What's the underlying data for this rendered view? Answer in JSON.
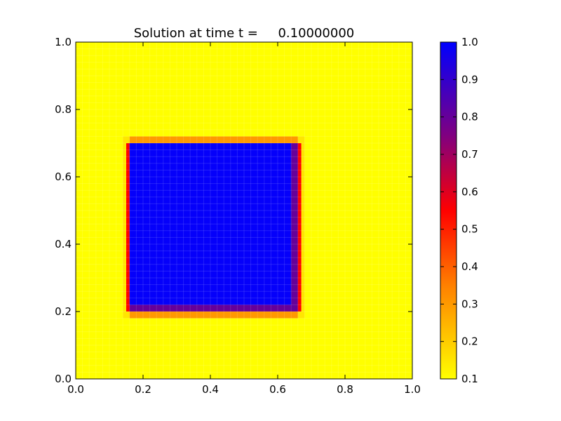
{
  "chart_data": {
    "type": "heatmap",
    "title": "Solution at time t =     0.10000000",
    "xlabel": "",
    "ylabel": "",
    "xlim": [
      0.0,
      1.0
    ],
    "ylim": [
      0.0,
      1.0
    ],
    "x_ticks": [
      "0.0",
      "0.2",
      "0.4",
      "0.6",
      "0.8",
      "1.0"
    ],
    "y_ticks": [
      "0.0",
      "0.2",
      "0.4",
      "0.6",
      "0.8",
      "1.0"
    ],
    "grid_resolution": [
      50,
      50
    ],
    "background_value": 0.1,
    "regions": [
      {
        "x": [
          0.14,
          0.68
        ],
        "y": [
          0.18,
          0.72
        ],
        "value": 0.15
      },
      {
        "x": [
          0.16,
          0.66
        ],
        "y": [
          0.18,
          0.72
        ],
        "value": 0.3
      },
      {
        "x": [
          0.14,
          0.68
        ],
        "y": [
          0.2,
          0.7
        ],
        "value": 0.15
      },
      {
        "x": [
          0.15,
          0.67
        ],
        "y": [
          0.2,
          0.7
        ],
        "value": 0.55
      },
      {
        "x": [
          0.16,
          0.66
        ],
        "y": [
          0.2,
          0.7
        ],
        "value": 0.8
      },
      {
        "x": [
          0.16,
          0.64
        ],
        "y": [
          0.22,
          0.7
        ],
        "value": 0.99
      }
    ],
    "colorbar": {
      "range": [
        0.1,
        1.0
      ],
      "ticks": [
        "0.1",
        "0.2",
        "0.3",
        "0.4",
        "0.5",
        "0.6",
        "0.7",
        "0.8",
        "0.9",
        "1.0"
      ],
      "colormap_stops": [
        {
          "value": 0.1,
          "color": "#ffff00"
        },
        {
          "value": 0.35,
          "color": "#ff8000"
        },
        {
          "value": 0.55,
          "color": "#ff0000"
        },
        {
          "value": 0.75,
          "color": "#800080"
        },
        {
          "value": 1.0,
          "color": "#0000ff"
        }
      ]
    }
  }
}
